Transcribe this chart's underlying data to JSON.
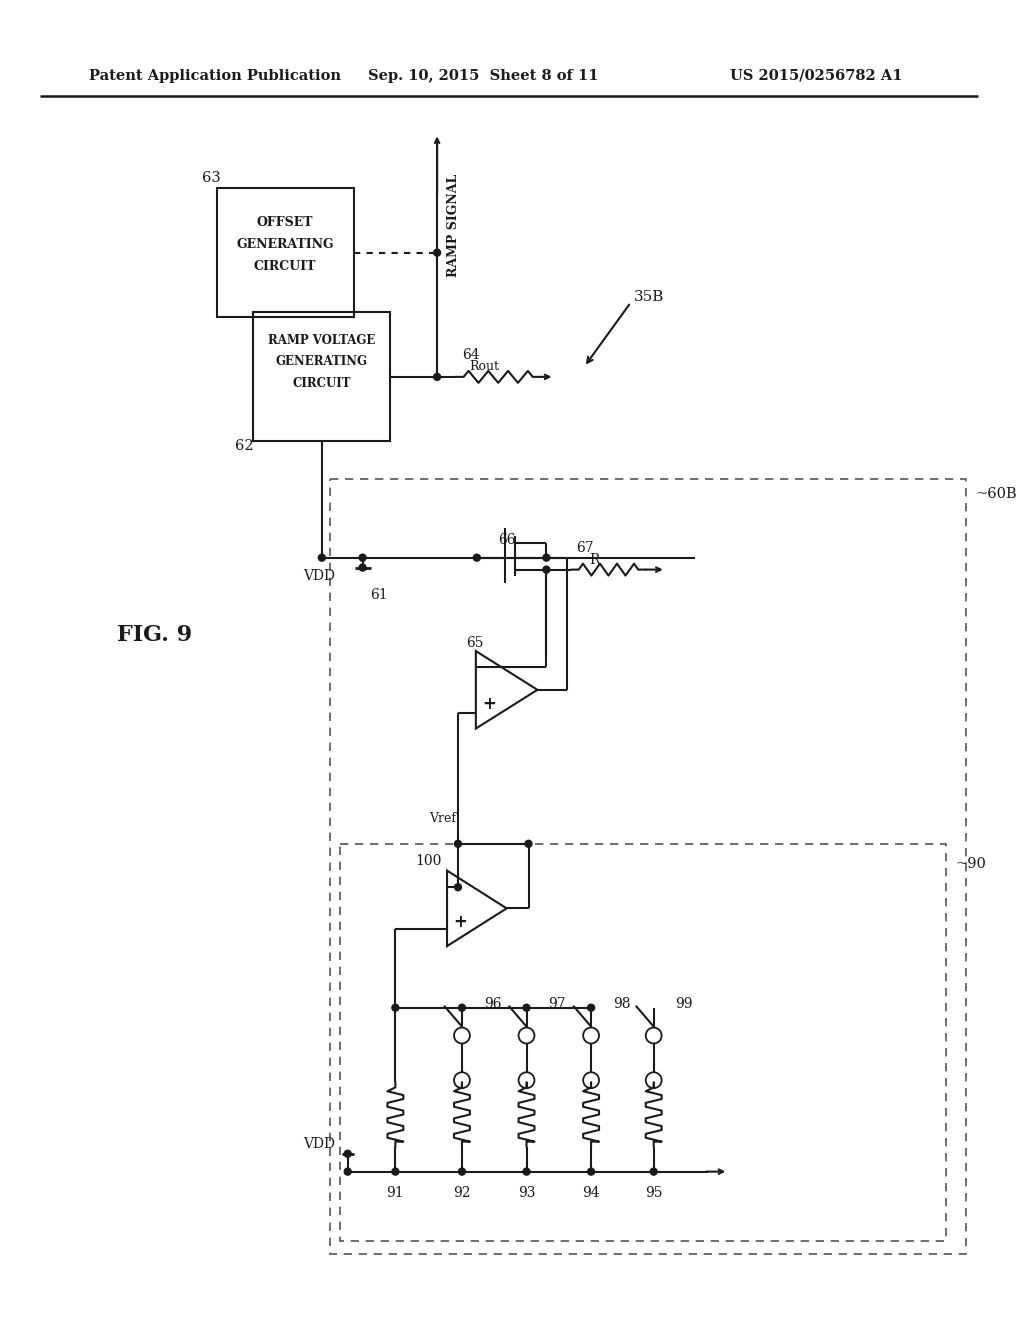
{
  "header_left": "Patent Application Publication",
  "header_center": "Sep. 10, 2015  Sheet 8 of 11",
  "header_right": "US 2015/0256782 A1",
  "fig_label": "FIG. 9",
  "background": "#ffffff",
  "line_color": "#1a1a1a",
  "dashed_color": "#555555"
}
